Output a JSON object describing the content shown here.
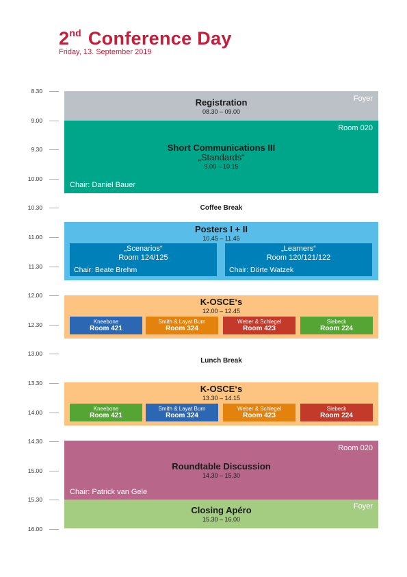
{
  "header": {
    "title_num": "2",
    "title_sup": "nd",
    "title_rest": "Conference Day",
    "subtitle": "Friday, 13. September 2019"
  },
  "timeline": [
    "8.30",
    "9.00",
    "9.30",
    "10.00",
    "10.30",
    "11.00",
    "11.30",
    "12.00",
    "12.30",
    "13.00",
    "13.30",
    "14.00",
    "14.30",
    "15.00",
    "15.30",
    "16.00"
  ],
  "colors": {
    "title": "#c41e3a",
    "registration": "#bcc1c7",
    "short_comm": "#00a68a",
    "posters": "#59bde9",
    "posters_sub": "#0080b8",
    "kosce": "#fcc480",
    "roundtable": "#b9668b",
    "closing": "#a5cd82"
  },
  "registration": {
    "title": "Registration",
    "time": "08.30 – 09.00",
    "room": "Foyer"
  },
  "short_comm": {
    "title": "Short Communications III",
    "subtitle": "„Standards“",
    "time": "9.00 – 10.15",
    "room": "Room 020",
    "chair": "Chair: Daniel Bauer"
  },
  "coffee_break": "Coffee Break",
  "posters": {
    "title": "Posters I + II",
    "time": "10.45 – 11.45",
    "left": {
      "name": "„Scenarios“",
      "room": "Room 124/125",
      "chair": "Chair: Beate Brehm"
    },
    "right": {
      "name": "„Learners“",
      "room": "Room 120/121/122",
      "chair": "Chair: Dörte Watzek"
    }
  },
  "kosce1": {
    "title": "K-OSCE‘s",
    "time": "12.00 – 12.45",
    "items": [
      {
        "name": "Kneebone",
        "room": "Room 421",
        "color": "#2c67b3"
      },
      {
        "name": "Smith & Layat Burn",
        "room": "Room  324",
        "color": "#e3820d"
      },
      {
        "name": "Weber & Schlegel",
        "room": "Room 423",
        "color": "#c33a2b"
      },
      {
        "name": "Siebeck",
        "room": "Room 224",
        "color": "#55a535"
      }
    ]
  },
  "lunch_break": "Lunch Break",
  "kosce2": {
    "title": "K-OSCE‘s",
    "time": "13.30 – 14.15",
    "items": [
      {
        "name": "Kneebone",
        "room": "Room 421",
        "color": "#55a535"
      },
      {
        "name": "Smith & Layat Burn",
        "room": "Room 324",
        "color": "#2c67b3"
      },
      {
        "name": "Weber & Schlegel",
        "room": "Room 423",
        "color": "#e3820d"
      },
      {
        "name": "Siebeck",
        "room": "Room 224",
        "color": "#c33a2b"
      }
    ]
  },
  "roundtable": {
    "title": "Roundtable Discussion",
    "time": "14.30 – 15.30",
    "room": "Room 020",
    "chair": "Chair: Patrick van Gele"
  },
  "closing": {
    "title": "Closing Apéro",
    "time": "15.30 – 16.00",
    "room": "Foyer"
  }
}
